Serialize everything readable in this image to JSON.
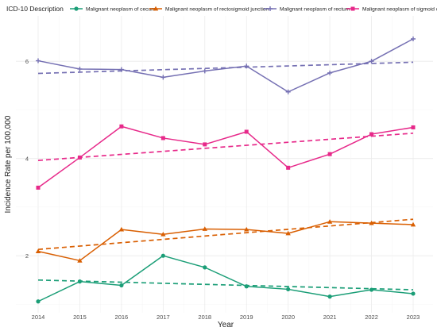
{
  "chart_data": {
    "type": "line",
    "xlabel": "Year",
    "ylabel": "Incidence Rate per 100,000",
    "x": [
      2014,
      2015,
      2016,
      2017,
      2018,
      2019,
      2020,
      2021,
      2022,
      2023
    ],
    "xlim": [
      2014,
      2023
    ],
    "ylim": [
      0.86,
      6.77
    ],
    "y_ticks": [
      2,
      4,
      6
    ],
    "grid": true,
    "legend": {
      "title": "ICD-10 Description",
      "position": "top"
    },
    "series": [
      {
        "name": "Malignant neoplasm of cecum",
        "color": "#1b9e77",
        "marker": "circle",
        "values": [
          1.06,
          1.47,
          1.39,
          2.0,
          1.76,
          1.37,
          1.31,
          1.16,
          1.3,
          1.22
        ],
        "trend": [
          1.5,
          1.3
        ]
      },
      {
        "name": "Malignant neoplasm of rectosigmoid junction",
        "color": "#d95f02",
        "marker": "triangle",
        "values": [
          2.09,
          1.9,
          2.54,
          2.44,
          2.55,
          2.54,
          2.46,
          2.7,
          2.67,
          2.64
        ],
        "trend": [
          2.13,
          2.75
        ]
      },
      {
        "name": "Malignant neoplasm of rectum",
        "color": "#7570b3",
        "marker": "plus",
        "values": [
          6.01,
          5.84,
          5.83,
          5.67,
          5.8,
          5.9,
          5.37,
          5.76,
          6.0,
          6.46
        ],
        "trend": [
          5.75,
          5.98
        ]
      },
      {
        "name": "Malignant neoplasm of sigmoid colon",
        "color": "#e7298a",
        "marker": "square",
        "values": [
          3.4,
          4.02,
          4.66,
          4.42,
          4.29,
          4.55,
          3.81,
          4.09,
          4.5,
          4.64
        ],
        "trend": [
          3.96,
          4.52
        ]
      }
    ]
  }
}
